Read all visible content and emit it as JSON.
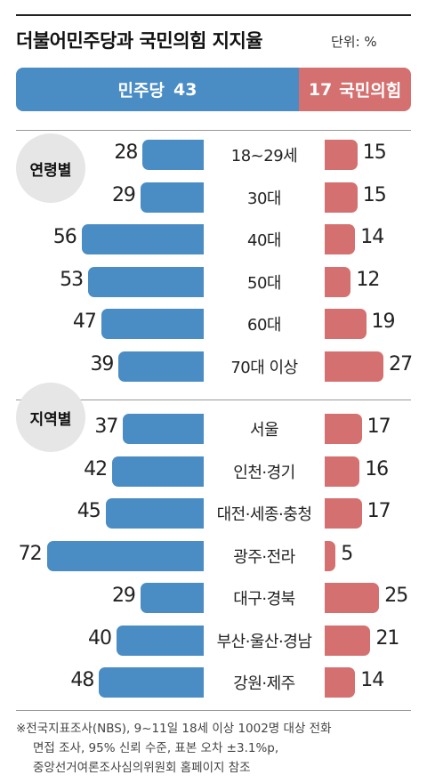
{
  "header": {
    "title": "더불어민주당과 국민의힘 지지율",
    "unit": "단위: %"
  },
  "summary": {
    "dem_label": "민주당",
    "dem_value": "43",
    "ppp_label": "국민의힘",
    "ppp_value": "17"
  },
  "colors": {
    "democratic": "#4a8cc4",
    "ppp": "#d4706f"
  },
  "chart_data": {
    "type": "bar",
    "orientation": "horizontal-diverging",
    "series": [
      {
        "name": "민주당",
        "color": "#4a8cc4"
      },
      {
        "name": "국민의힘",
        "color": "#d4706f"
      }
    ],
    "groups": [
      {
        "label": "연령별",
        "rows": [
          {
            "category": "18~29세",
            "dem": 28,
            "ppp": 15
          },
          {
            "category": "30대",
            "dem": 29,
            "ppp": 15
          },
          {
            "category": "40대",
            "dem": 56,
            "ppp": 14
          },
          {
            "category": "50대",
            "dem": 53,
            "ppp": 12
          },
          {
            "category": "60대",
            "dem": 47,
            "ppp": 19
          },
          {
            "category": "70대 이상",
            "dem": 39,
            "ppp": 27
          }
        ]
      },
      {
        "label": "지역별",
        "rows": [
          {
            "category": "서울",
            "dem": 37,
            "ppp": 17
          },
          {
            "category": "인천·경기",
            "dem": 42,
            "ppp": 16
          },
          {
            "category": "대전·세종·충청",
            "dem": 45,
            "ppp": 17
          },
          {
            "category": "광주·전라",
            "dem": 72,
            "ppp": 5
          },
          {
            "category": "대구·경북",
            "dem": 29,
            "ppp": 25
          },
          {
            "category": "부산·울산·경남",
            "dem": 40,
            "ppp": 21
          },
          {
            "category": "강원·제주",
            "dem": 48,
            "ppp": 14
          }
        ]
      }
    ]
  },
  "footnote": {
    "line1": "※전국지표조사(NBS), 9~11일 18세 이상 1002명 대상 전화",
    "line2": "면접 조사, 95% 신뢰 수준, 표본 오차 ±3.1%p,",
    "line3": "중앙선거여론조사심의위원회 홈페이지 참조"
  }
}
